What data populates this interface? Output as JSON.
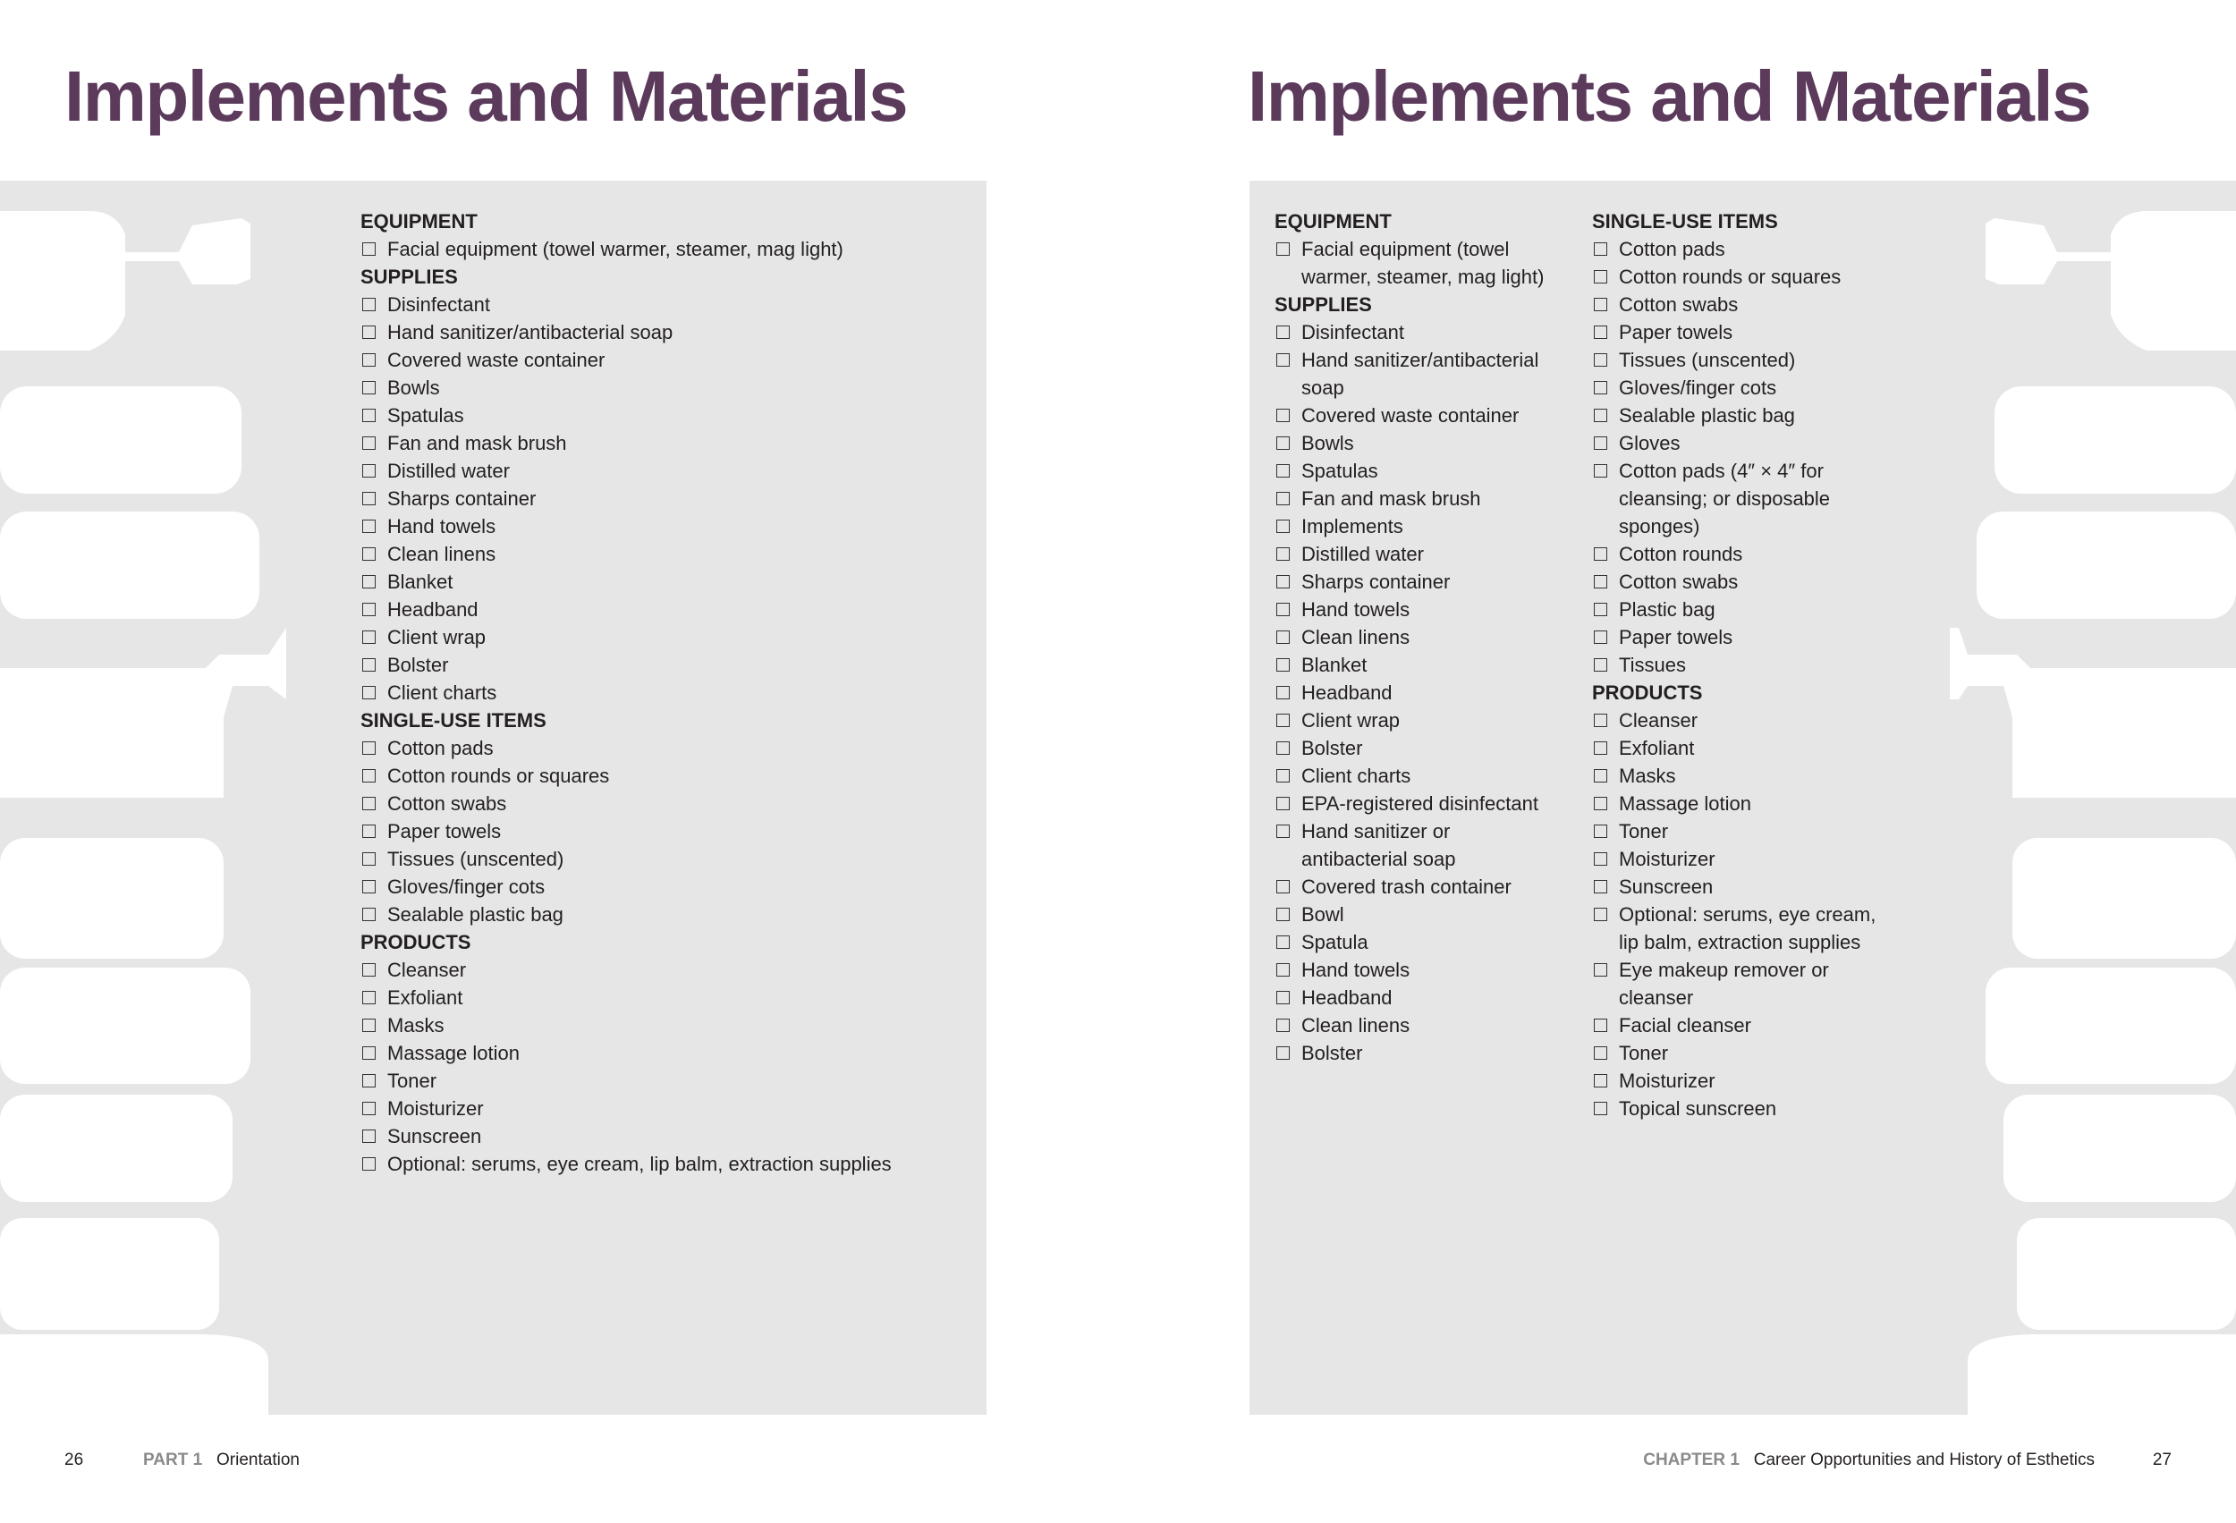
{
  "colors": {
    "title": "#5b3a5c",
    "panel": "#e6e6e6",
    "silhouette": "#ffffff"
  },
  "left_page": {
    "title": "Implements and Materials",
    "sections": [
      {
        "title": "EQUIPMENT",
        "items": [
          "Facial equipment (towel warmer, steamer, mag light)"
        ]
      },
      {
        "title": "SUPPLIES",
        "items": [
          "Disinfectant",
          "Hand sanitizer/antibacterial soap",
          "Covered waste container",
          "Bowls",
          "Spatulas",
          "Fan and mask brush",
          "Distilled water",
          "Sharps container",
          "Hand towels",
          "Clean linens",
          "Blanket",
          "Headband",
          "Client wrap",
          "Bolster",
          "Client charts"
        ]
      },
      {
        "title": "SINGLE-USE ITEMS",
        "items": [
          "Cotton pads",
          "Cotton rounds or squares",
          "Cotton swabs",
          "Paper towels",
          "Tissues (unscented)",
          "Gloves/finger cots",
          "Sealable plastic bag"
        ]
      },
      {
        "title": "PRODUCTS",
        "items": [
          "Cleanser",
          "Exfoliant",
          "Masks",
          "Massage lotion",
          "Toner",
          "Moisturizer",
          "Sunscreen",
          "Optional: serums, eye cream, lip balm, extraction supplies"
        ]
      }
    ],
    "footer": {
      "page_number": "26",
      "part_label": "PART 1",
      "part_name": "Orientation"
    }
  },
  "right_page": {
    "title": "Implements and Materials",
    "col1": [
      {
        "title": "EQUIPMENT",
        "items": [
          "Facial equipment (towel\nwarmer, steamer, mag light)"
        ]
      },
      {
        "title": "SUPPLIES",
        "items": [
          "Disinfectant",
          "Hand sanitizer/antibacterial\nsoap",
          "Covered waste container",
          "Bowls",
          "Spatulas",
          "Fan and mask brush",
          "Implements",
          "Distilled water",
          "Sharps container",
          "Hand towels",
          "Clean linens",
          "Blanket",
          "Headband",
          "Client wrap",
          "Bolster",
          "Client charts",
          "EPA-registered disinfectant",
          "Hand sanitizer or\nantibacterial soap",
          "Covered trash container",
          "Bowl",
          "Spatula",
          "Hand towels",
          "Headband",
          "Clean linens",
          "Bolster"
        ]
      }
    ],
    "col2": [
      {
        "title": "SINGLE-USE ITEMS",
        "items": [
          "Cotton pads",
          "Cotton rounds or squares",
          "Cotton swabs",
          "Paper towels",
          "Tissues (unscented)",
          "Gloves/finger cots",
          "Sealable plastic bag",
          "Gloves",
          "Cotton pads (4″ × 4″ for\ncleansing; or disposable\nsponges)",
          "Cotton rounds",
          "Cotton swabs",
          "Plastic bag",
          "Paper towels",
          "Tissues"
        ]
      },
      {
        "title": "PRODUCTS",
        "items": [
          "Cleanser",
          "Exfoliant",
          "Masks",
          "Massage lotion",
          "Toner",
          "Moisturizer",
          "Sunscreen",
          "Optional: serums, eye cream,\nlip balm, extraction supplies",
          "Eye makeup remover or\ncleanser",
          "Facial cleanser",
          "Toner",
          "Moisturizer",
          "Topical sunscreen"
        ]
      }
    ],
    "footer": {
      "chapter_label": "CHAPTER 1",
      "chapter_name": "Career Opportunities and History of Esthetics",
      "page_number": "27"
    }
  }
}
